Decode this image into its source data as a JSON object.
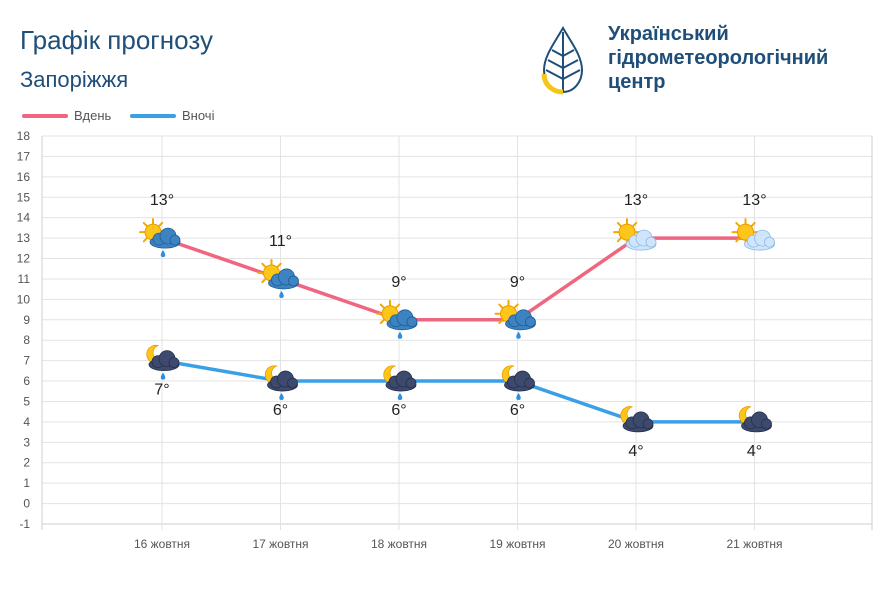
{
  "header": {
    "title": "Графік прогнозу",
    "city": "Запоріжжя"
  },
  "organization": {
    "name_lines": [
      "Український",
      "гідрометеорологічний",
      "центр"
    ],
    "logo_icon": "water-drop-logo-icon",
    "logo_colors": [
      "#1f4e79",
      "#f5c518"
    ]
  },
  "legend": {
    "items": [
      {
        "label": "Вдень",
        "color": "#f0657f"
      },
      {
        "label": "Вночі",
        "color": "#3aa0e6"
      }
    ]
  },
  "chart_data": {
    "type": "line",
    "categories": [
      "16 жовтня",
      "17 жовтня",
      "18 жовтня",
      "19 жовтня",
      "20 жовтня",
      "21 жовтня"
    ],
    "series": [
      {
        "name": "Вдень",
        "color": "#f0657f",
        "values": [
          13,
          11,
          9,
          9,
          13,
          13
        ],
        "labels": [
          "13°",
          "11°",
          "9°",
          "9°",
          "13°",
          "13°"
        ],
        "icons": [
          "sun-cloud-rain-icon",
          "sun-cloud-rain-icon",
          "sun-cloud-rain-icon",
          "sun-cloud-rain-icon",
          "sun-cloud-icon",
          "sun-cloud-icon"
        ]
      },
      {
        "name": "Вночі",
        "color": "#3aa0e6",
        "values": [
          7,
          6,
          6,
          6,
          4,
          4
        ],
        "labels": [
          "7°",
          "6°",
          "6°",
          "6°",
          "4°",
          "4°"
        ],
        "icons": [
          "moon-cloud-rain-icon",
          "moon-cloud-rain-icon",
          "moon-cloud-rain-icon",
          "moon-cloud-rain-icon",
          "moon-cloud-icon",
          "moon-cloud-icon"
        ]
      }
    ],
    "yticks": [
      18,
      17,
      16,
      15,
      14,
      13,
      12,
      11,
      10,
      9,
      8,
      7,
      6,
      5,
      4,
      3,
      2,
      1,
      0,
      -1
    ],
    "ylim": [
      -1,
      18
    ],
    "grid": true,
    "legend_position": "top-left"
  }
}
